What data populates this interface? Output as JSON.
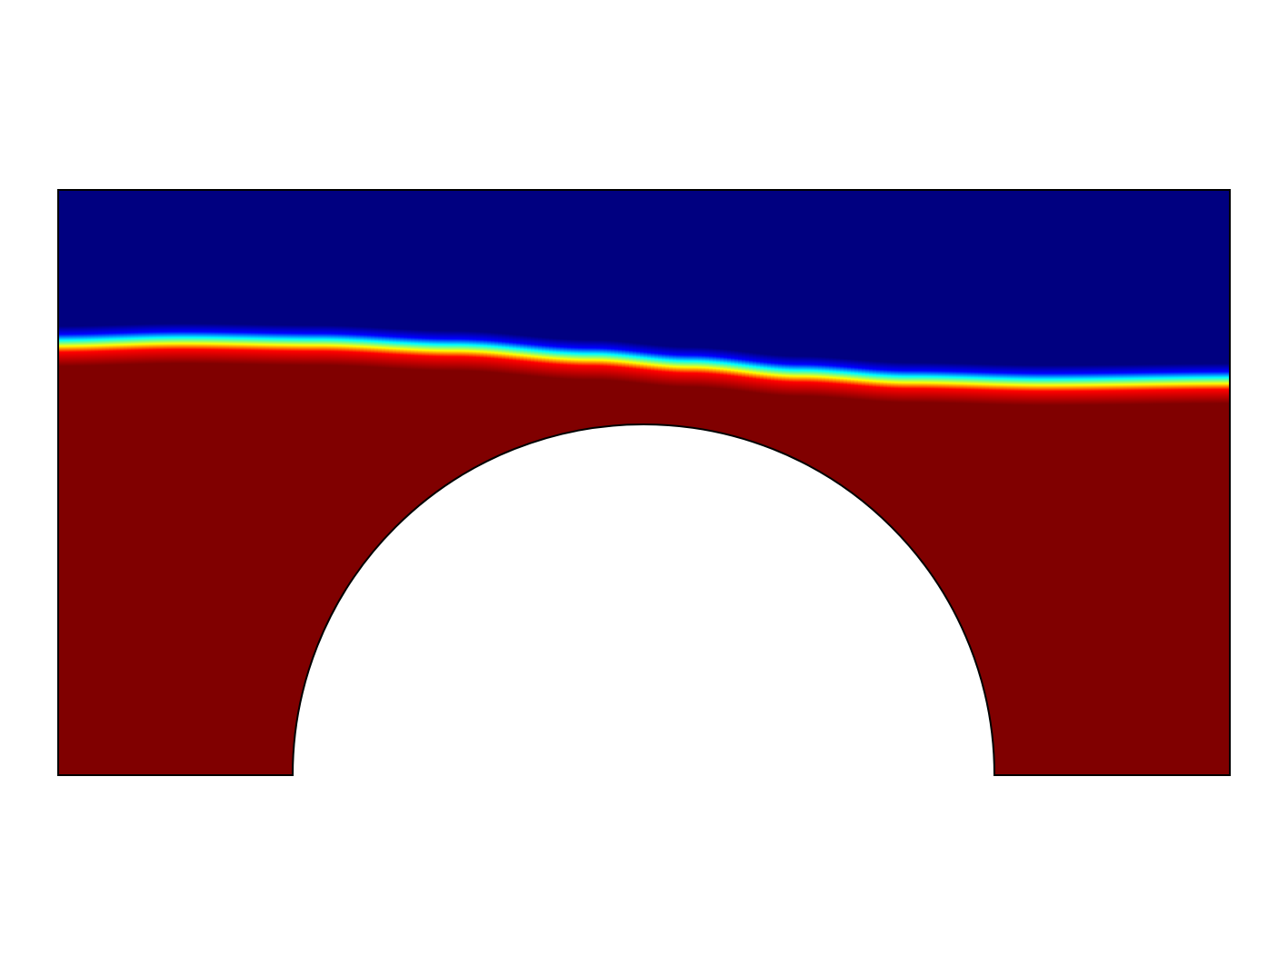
{
  "plot": {
    "type": "surface-field",
    "colormap": "jet",
    "colors": {
      "low": "#000080",
      "high": "#800000",
      "background": "#ffffff",
      "outline": "#000000"
    },
    "text_labels": []
  }
}
